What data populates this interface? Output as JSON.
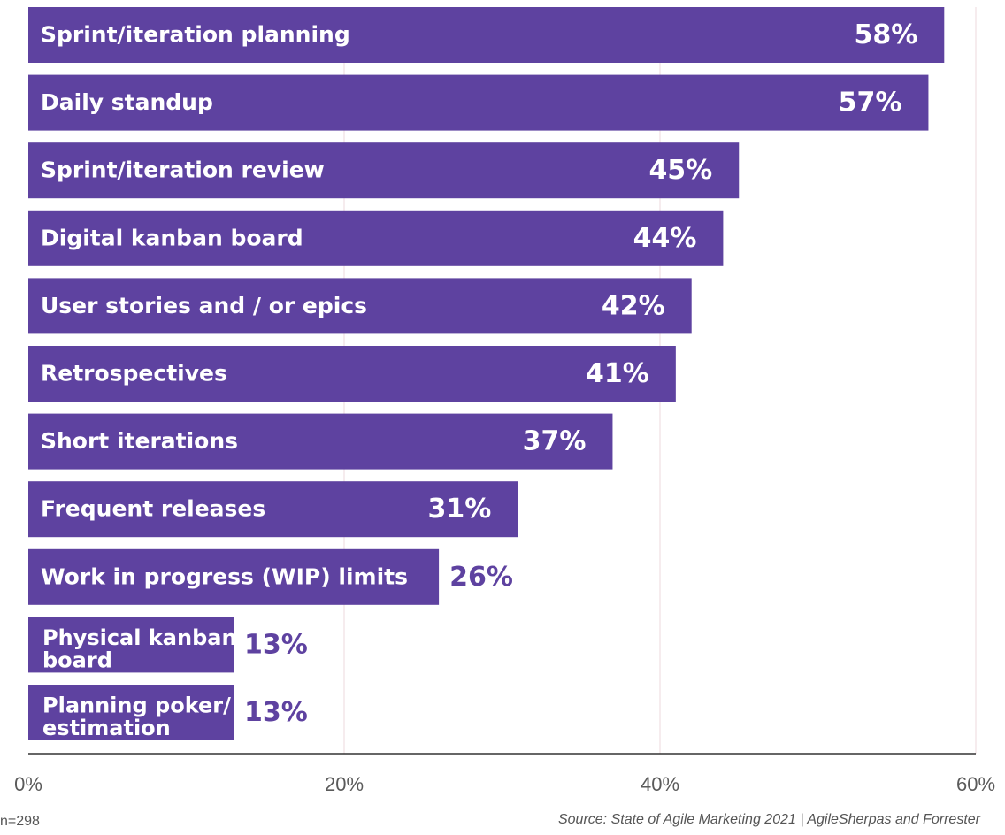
{
  "chart_data": {
    "type": "bar",
    "orientation": "horizontal",
    "categories": [
      "Sprint/iteration planning",
      "Daily standup",
      "Sprint/iteration review",
      "Digital kanban board",
      "User stories and / or epics",
      "Retrospectives",
      "Short iterations",
      "Frequent releases",
      "Work in progress (WIP) limits",
      "Physical kanban board",
      "Planning poker/ estimation"
    ],
    "values": [
      58,
      57,
      45,
      44,
      42,
      41,
      37,
      31,
      26,
      13,
      13
    ],
    "value_labels": [
      "58%",
      "57%",
      "45%",
      "44%",
      "42%",
      "41%",
      "37%",
      "31%",
      "26%",
      "13%",
      "13%"
    ],
    "xlim": [
      0,
      60
    ],
    "x_ticks": [
      0,
      20,
      40,
      60
    ],
    "x_tick_labels": [
      "0%",
      "20%",
      "40%",
      "60%"
    ],
    "grid": true,
    "bar_color": "#5e42a0",
    "value_outside_color": "#5e42a0"
  },
  "footer": {
    "sample_size": "n=298",
    "source": "Source: State of Agile Marketing 2021 | AgileSherpas and Forrester"
  }
}
